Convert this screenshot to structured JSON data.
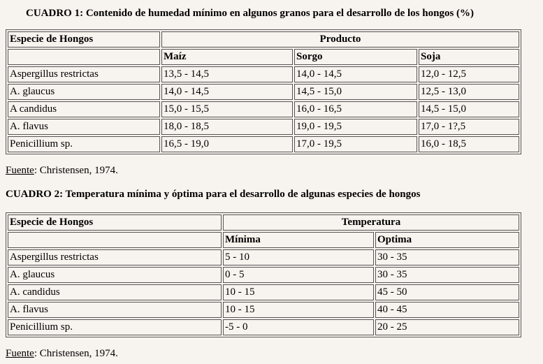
{
  "table1": {
    "title": "CUADRO 1: Contenido de humedad mínimo en algunos granos para el desarrollo de los hongos (%)",
    "species_header": "Especie de Hongos",
    "group_header": "Producto",
    "columns": [
      "Maíz",
      "Sorgo",
      "Soja"
    ],
    "rows": [
      [
        "Aspergillus restrictas",
        "13,5 - 14,5",
        "14,0 - 14,5",
        "12,0 - 12,5"
      ],
      [
        "A. glaucus",
        "14,0 - 14,5",
        "14,5 - 15,0",
        "12,5 - 13,0"
      ],
      [
        "A candidus",
        "15,0 - 15,5",
        "16,0 - 16,5",
        "14,5 - 15,0"
      ],
      [
        "A. flavus",
        "18,0 - 18,5",
        "19,0 - 19,5",
        "17,0 - 1?,5"
      ],
      [
        "Penicillium sp.",
        "16,5 - 19,0",
        "17,0 - 19,5",
        "16,0 - 18,5"
      ]
    ]
  },
  "source1": {
    "label": "Fuente",
    "text": ": Christensen, 1974."
  },
  "table2": {
    "title": "CUADRO 2: Temperatura mínima y óptima para el desarrollo de algunas especies de hongos",
    "species_header": "Especie de Hongos",
    "group_header": "Temperatura",
    "columns": [
      "Mínima",
      "Optima"
    ],
    "rows": [
      [
        "Aspergillus restrictas",
        "5 - 10",
        "30 - 35"
      ],
      [
        "A. glaucus",
        "0 - 5",
        "30 - 35"
      ],
      [
        "A. candidus",
        "10 - 15",
        "45 - 50"
      ],
      [
        "A. flavus",
        "10 - 15",
        "40 - 45"
      ],
      [
        "Penicillium sp.",
        "-5 - 0",
        "20 - 25"
      ]
    ]
  },
  "source2": {
    "label": "Fuente",
    "text": ": Christensen, 1974."
  }
}
